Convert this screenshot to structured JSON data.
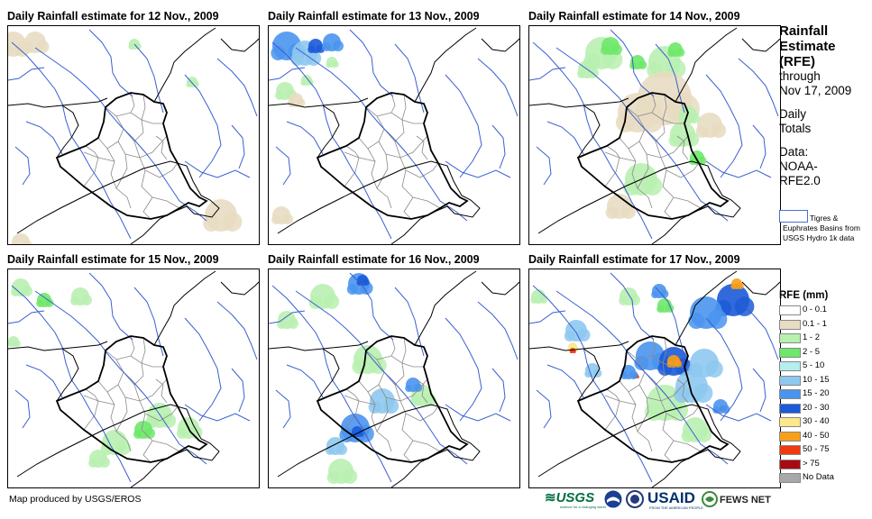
{
  "panels": [
    {
      "title": "Daily Rainfall estimate for 12 Nov., 2009"
    },
    {
      "title": "Daily Rainfall estimate for 13 Nov., 2009"
    },
    {
      "title": "Daily Rainfall estimate for 14 Nov., 2009"
    },
    {
      "title": "Daily Rainfall estimate for 15 Nov., 2009"
    },
    {
      "title": "Daily Rainfall estimate for 16 Nov., 2009"
    },
    {
      "title": "Daily Rainfall estimate for 17 Nov., 2009"
    }
  ],
  "sidebar": {
    "heading_line1": "Rainfall",
    "heading_line2": "Estimate",
    "heading_line3": "(RFE)",
    "through": "through",
    "date": "Nov 17, 2009",
    "totals_line1": "Daily",
    "totals_line2": "Totals",
    "data_label": "Data:",
    "data_line1": "NOAA-",
    "data_line2": "RFE2.0",
    "basin_text": "Tigres & Euphrates Basins from USGS Hydro 1k data"
  },
  "legend": {
    "title": "RFE (mm)",
    "items": [
      {
        "label": "0 - 0.1",
        "color": "#ffffff"
      },
      {
        "label": "0.1 - 1",
        "color": "#e8dcc2"
      },
      {
        "label": "1 - 2",
        "color": "#b8f0b0"
      },
      {
        "label": "2 - 5",
        "color": "#6ee86a"
      },
      {
        "label": "5 - 10",
        "color": "#b4eeee"
      },
      {
        "label": "10 - 15",
        "color": "#8ec8f0"
      },
      {
        "label": "15 - 20",
        "color": "#4a94ee"
      },
      {
        "label": "20 - 30",
        "color": "#1c5ad8"
      },
      {
        "label": "30 - 40",
        "color": "#fce88a"
      },
      {
        "label": "40 - 50",
        "color": "#f8a01a"
      },
      {
        "label": "50 - 75",
        "color": "#f03a10"
      },
      {
        "label": "> 75",
        "color": "#a80a14"
      },
      {
        "label": "No Data",
        "color": "#a8a8a8"
      }
    ]
  },
  "footer": {
    "credit": "Map produced by USGS/EROS",
    "logo_usgs": "USGS",
    "logo_usgs_sub": "science for a changing world",
    "logo_usaid": "USAID",
    "logo_usaid_sub": "FROM THE AMERICAN PEOPLE",
    "logo_fews": "FEWS NET"
  },
  "colors": {
    "border": "#000000",
    "rivers": "#3a5fd0",
    "provinces": "#8a8a8a"
  }
}
